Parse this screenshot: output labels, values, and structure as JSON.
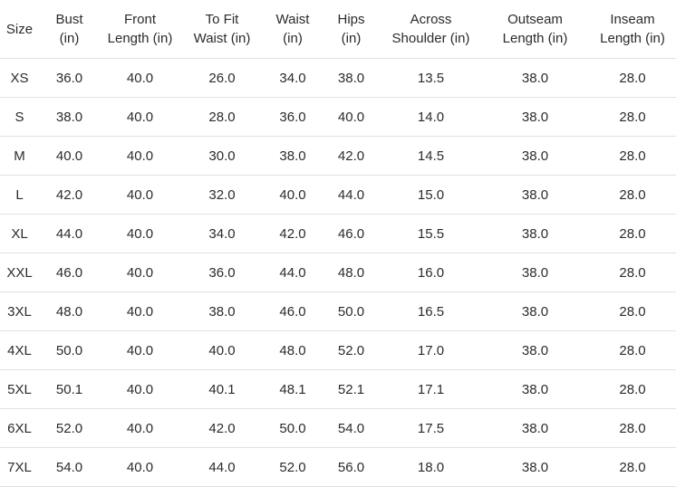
{
  "chart_data": {
    "type": "table",
    "columns": [
      "Size",
      "Bust (in)",
      "Front Length (in)",
      "To Fit Waist (in)",
      "Waist (in)",
      "Hips (in)",
      "Across Shoulder (in)",
      "Outseam Length (in)",
      "Inseam Length (in)"
    ],
    "column_lines": [
      [
        "Size"
      ],
      [
        "Bust",
        "(in)"
      ],
      [
        "Front",
        "Length (in)"
      ],
      [
        "To Fit",
        "Waist (in)"
      ],
      [
        "Waist",
        "(in)"
      ],
      [
        "Hips",
        "(in)"
      ],
      [
        "Across",
        "Shoulder (in)"
      ],
      [
        "Outseam",
        "Length (in)"
      ],
      [
        "Inseam",
        "Length (in)"
      ]
    ],
    "rows": [
      [
        "XS",
        "36.0",
        "40.0",
        "26.0",
        "34.0",
        "38.0",
        "13.5",
        "38.0",
        "28.0"
      ],
      [
        "S",
        "38.0",
        "40.0",
        "28.0",
        "36.0",
        "40.0",
        "14.0",
        "38.0",
        "28.0"
      ],
      [
        "M",
        "40.0",
        "40.0",
        "30.0",
        "38.0",
        "42.0",
        "14.5",
        "38.0",
        "28.0"
      ],
      [
        "L",
        "42.0",
        "40.0",
        "32.0",
        "40.0",
        "44.0",
        "15.0",
        "38.0",
        "28.0"
      ],
      [
        "XL",
        "44.0",
        "40.0",
        "34.0",
        "42.0",
        "46.0",
        "15.5",
        "38.0",
        "28.0"
      ],
      [
        "XXL",
        "46.0",
        "40.0",
        "36.0",
        "44.0",
        "48.0",
        "16.0",
        "38.0",
        "28.0"
      ],
      [
        "3XL",
        "48.0",
        "40.0",
        "38.0",
        "46.0",
        "50.0",
        "16.5",
        "38.0",
        "28.0"
      ],
      [
        "4XL",
        "50.0",
        "40.0",
        "40.0",
        "48.0",
        "52.0",
        "17.0",
        "38.0",
        "28.0"
      ],
      [
        "5XL",
        "50.1",
        "40.0",
        "40.1",
        "48.1",
        "52.1",
        "17.1",
        "38.0",
        "28.0"
      ],
      [
        "6XL",
        "52.0",
        "40.0",
        "42.0",
        "50.0",
        "54.0",
        "17.5",
        "38.0",
        "28.0"
      ],
      [
        "7XL",
        "54.0",
        "40.0",
        "44.0",
        "52.0",
        "56.0",
        "18.0",
        "38.0",
        "28.0"
      ]
    ]
  },
  "colors": {
    "background": "#ffffff",
    "text": "#2b2b2b",
    "divider": "#e1e1e1"
  }
}
